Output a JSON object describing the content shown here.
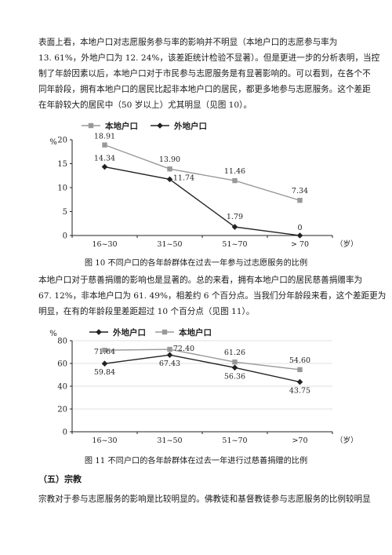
{
  "intro_lines": [
    "表面上看，本地户口对志愿服务参与率的影响并不明显（本地户口的志愿参与率为",
    "13. 61%，外地户口为 12. 24%，该差距统计检验不显著）。但是更进一步的分析表明，当控",
    "制了年龄因素以后，本地户口对于市民参与志愿服务是有显著影响的。可以看到，在各个不",
    "同年龄段，拥有本地户口的居民比起非本地户口的居民，都更多地参与志愿服务。这个差距",
    "在年龄较大的居民中（50 岁以上）尤其明显（见图 10）。"
  ],
  "mid_lines": [
    "本地户口对于慈善捐赠的影响也是显著的。总的来看，拥有本地户口的居民慈善捐赠率为",
    "67. 12%，非本地户口为 61. 49%，相差约 6 个百分点。当我们分年龄段来看，这个差距更为",
    "明显，在有的年龄段里差距超过 10 个百分点（见图 11）。"
  ],
  "fig10_caption": "图 10  不同户口的各年龄群体在过去一年参与过志愿服务的比例",
  "fig11_caption": "图 11  不同户口的各年龄群体在过去一年进行过慈善捐赠的比例",
  "section_heading": "（五）宗教",
  "last_line": "宗教对于参与志愿服务的影响是比较明显的。佛教徒和基督教徒参与志愿服务的比例较明显",
  "chart_data": [
    {
      "type": "line",
      "categories": [
        "16~30",
        "31~50",
        "51~70",
        "> 70"
      ],
      "ylabel": "%",
      "xlabel": "（岁）",
      "ylim": [
        0,
        20
      ],
      "yticks": [
        "0",
        "5",
        "10",
        "15",
        "20"
      ],
      "legend": "top-left",
      "series": [
        {
          "name": "本地户口",
          "marker": "square",
          "color": "#999999",
          "values": [
            18.91,
            13.9,
            11.46,
            7.34
          ],
          "labels": [
            "18.91",
            "13.90",
            "11.46",
            "7.34"
          ]
        },
        {
          "name": "外地户口",
          "marker": "diamond",
          "color": "#222222",
          "values": [
            14.34,
            11.74,
            1.79,
            0
          ],
          "labels": [
            "14.34",
            "11.74",
            "1.79",
            "0"
          ]
        }
      ]
    },
    {
      "type": "line",
      "categories": [
        "16~30",
        "31~50",
        "51~70",
        ">70"
      ],
      "ylabel": "%",
      "xlabel": "（岁）",
      "ylim": [
        0,
        80
      ],
      "yticks": [
        "0",
        "20",
        "40",
        "60",
        "80"
      ],
      "legend": "top-left",
      "grid": true,
      "series": [
        {
          "name": "外地户口",
          "marker": "diamond",
          "color": "#222222",
          "values": [
            59.84,
            67.43,
            56.36,
            43.75
          ],
          "labels": [
            "59.84",
            "67.43",
            "56.36",
            "43.75"
          ]
        },
        {
          "name": "本地户口",
          "marker": "square",
          "color": "#999999",
          "values": [
            71.64,
            72.4,
            61.26,
            54.6
          ],
          "labels": [
            "71.64",
            "72.40",
            "61.26",
            "54.60"
          ]
        }
      ]
    }
  ]
}
